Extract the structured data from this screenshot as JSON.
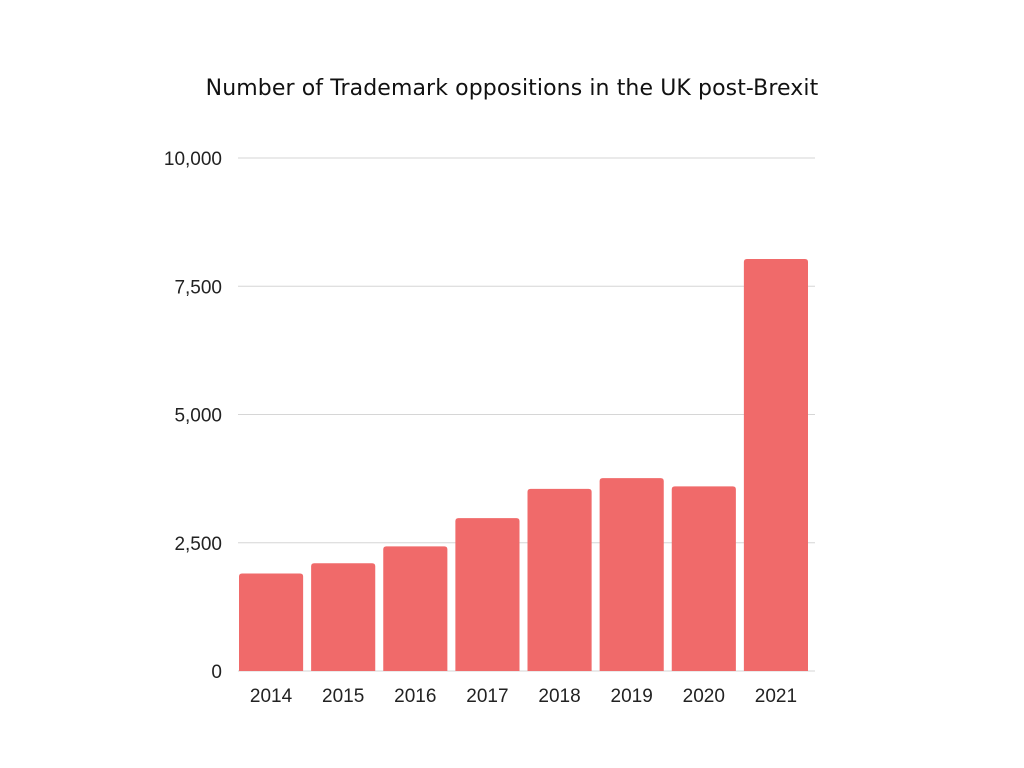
{
  "chart_data": {
    "type": "bar",
    "title": "Number of Trademark oppositions in the UK post-Brexit",
    "xlabel": "",
    "ylabel": "",
    "categories": [
      "2014",
      "2015",
      "2016",
      "2017",
      "2018",
      "2019",
      "2020",
      "2021"
    ],
    "values": [
      1900,
      2100,
      2430,
      2980,
      3550,
      3760,
      3600,
      8030
    ],
    "ylim": [
      0,
      10000
    ],
    "yticks": [
      {
        "value": 0,
        "label": "0"
      },
      {
        "value": 2500,
        "label": "2,500"
      },
      {
        "value": 5000,
        "label": "5,000"
      },
      {
        "value": 7500,
        "label": "7,500"
      },
      {
        "value": 10000,
        "label": "10,000"
      }
    ],
    "grid": true,
    "legend": "none",
    "bar_color": "#f06a6a"
  }
}
